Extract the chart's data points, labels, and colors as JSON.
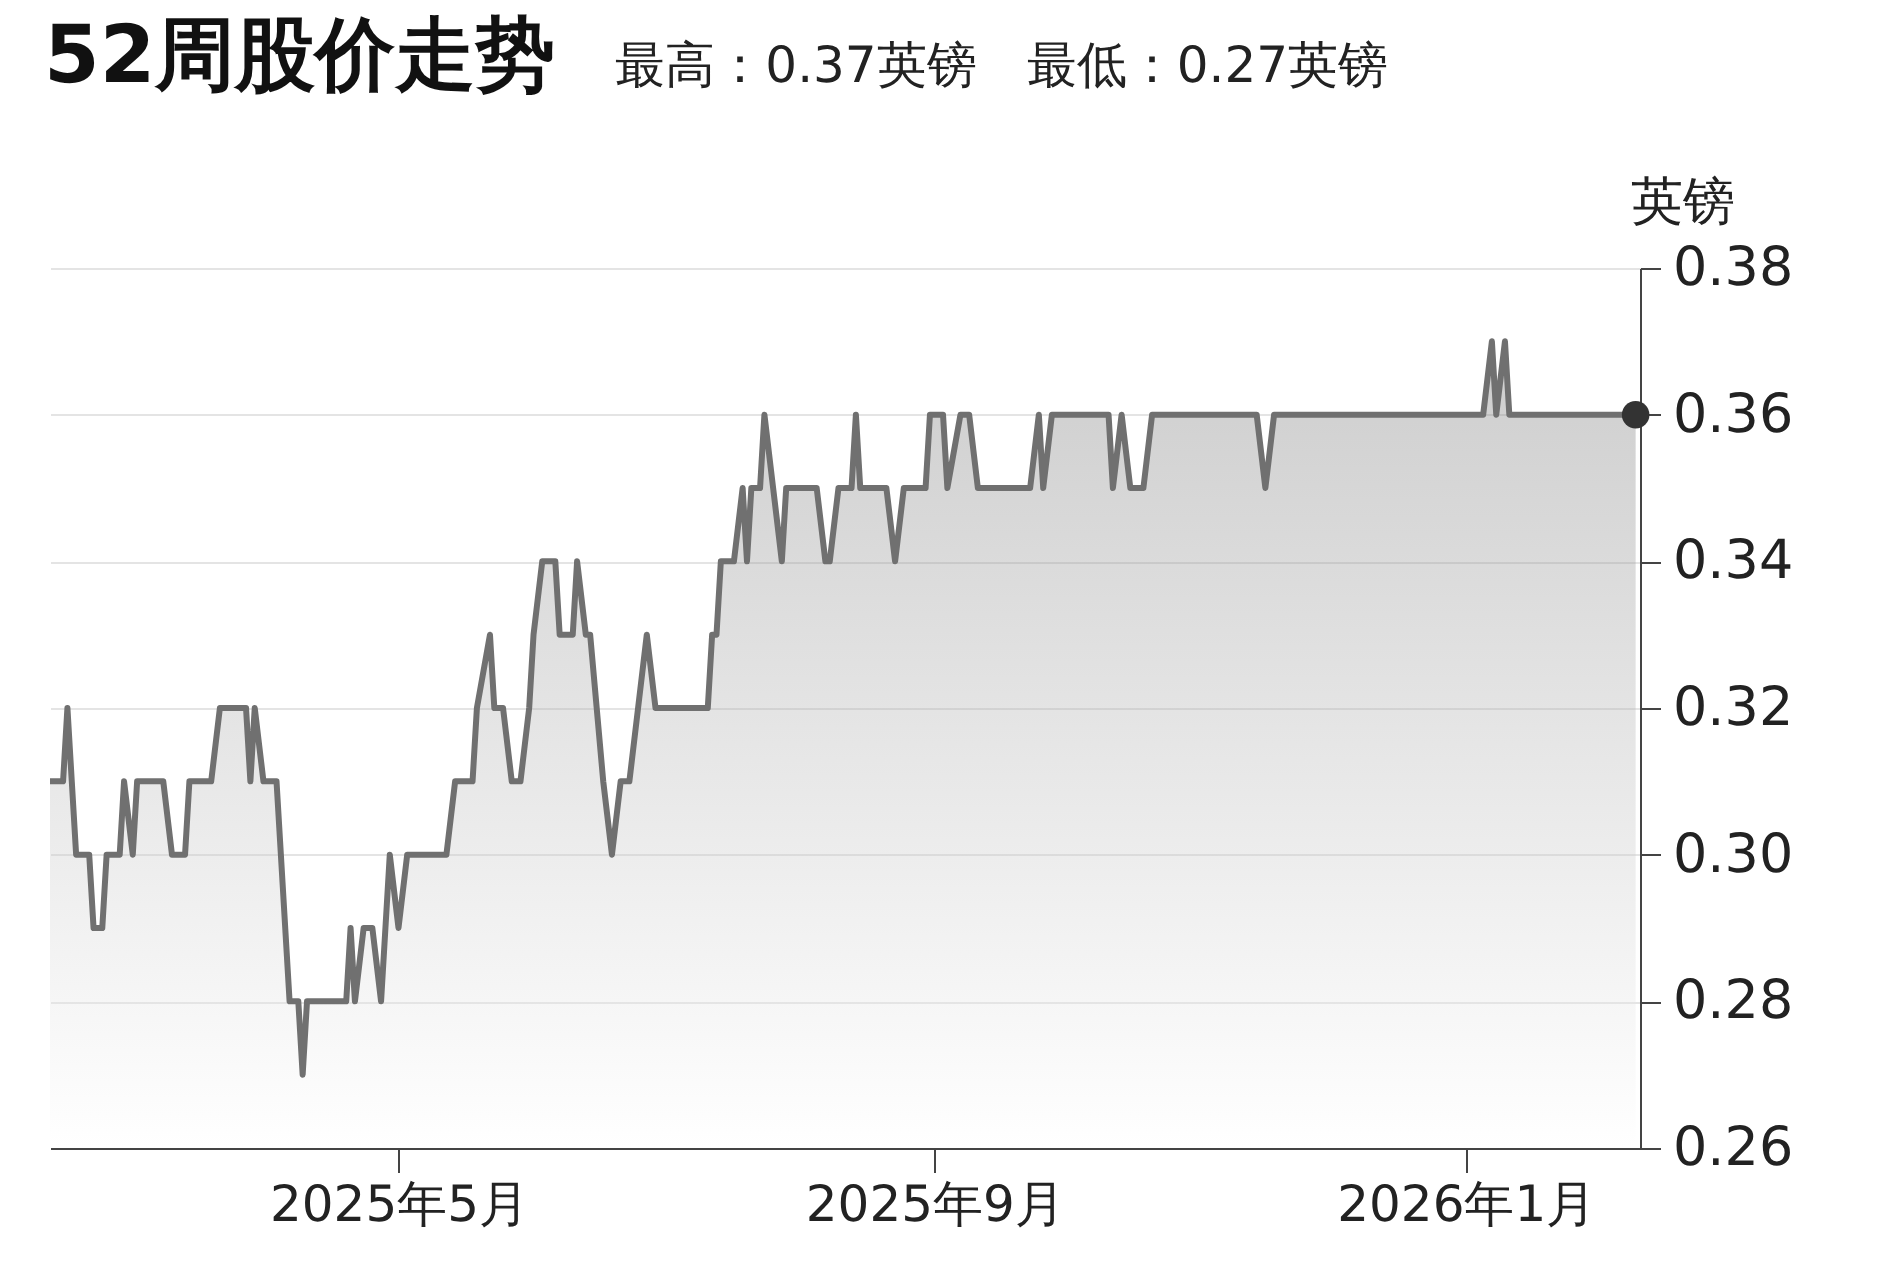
{
  "chart_data": {
    "type": "area",
    "title": "52周股价走势",
    "subtitle": "最高：0.37英镑　最低：0.27英镑",
    "ylabel": "英镑",
    "xlim": [
      "2025-02-10",
      "2026-02-10"
    ],
    "xticks": [
      {
        "value": "2025-05-01",
        "label": "2025年5月"
      },
      {
        "value": "2025-09-01",
        "label": "2025年9月"
      },
      {
        "value": "2026-01-01",
        "label": "2026年1月"
      }
    ],
    "ylim": [
      0.26,
      0.38
    ],
    "yticks": [
      0.26,
      0.28,
      {
        "value": 0.3,
        "label": "0.30"
      },
      0.32,
      0.34,
      0.36,
      0.38
    ],
    "grid": "y",
    "series": [
      {
        "color": "#707070",
        "x": [
          "2025-02-10",
          "2025-02-13",
          "2025-02-14",
          "2025-02-15",
          "2025-02-16",
          "2025-02-19",
          "2025-02-20",
          "2025-02-22",
          "2025-02-23",
          "2025-02-26",
          "2025-02-27",
          "2025-03-01",
          "2025-03-02",
          "2025-03-08",
          "2025-03-10",
          "2025-03-13",
          "2025-03-14",
          "2025-03-19",
          "2025-03-21",
          "2025-03-27",
          "2025-03-28",
          "2025-03-29",
          "2025-03-31",
          "2025-04-03",
          "2025-04-06",
          "2025-04-08",
          "2025-04-09",
          "2025-04-10",
          "2025-04-19",
          "2025-04-20",
          "2025-04-21",
          "2025-04-23",
          "2025-04-25",
          "2025-04-27",
          "2025-04-29",
          "2025-05-01",
          "2025-05-03",
          "2025-05-12",
          "2025-05-14",
          "2025-05-18",
          "2025-05-19",
          "2025-05-22",
          "2025-05-23",
          "2025-05-25",
          "2025-05-27",
          "2025-05-29",
          "2025-05-31",
          "2025-06-01",
          "2025-06-03",
          "2025-06-06",
          "2025-06-07",
          "2025-06-10",
          "2025-06-11",
          "2025-06-13",
          "2025-06-14",
          "2025-06-17",
          "2025-06-19",
          "2025-06-21",
          "2025-06-23",
          "2025-06-25",
          "2025-06-27",
          "2025-06-29",
          "2025-07-11",
          "2025-07-12",
          "2025-07-13",
          "2025-07-14",
          "2025-07-17",
          "2025-07-19",
          "2025-07-20",
          "2025-07-21",
          "2025-07-23",
          "2025-07-24",
          "2025-07-26",
          "2025-07-28",
          "2025-07-29",
          "2025-08-05",
          "2025-08-07",
          "2025-08-08",
          "2025-08-10",
          "2025-08-13",
          "2025-08-14",
          "2025-08-15",
          "2025-08-21",
          "2025-08-23",
          "2025-08-25",
          "2025-08-30",
          "2025-08-31",
          "2025-09-03",
          "2025-09-04",
          "2025-09-07",
          "2025-09-09",
          "2025-09-11",
          "2025-09-23",
          "2025-09-25",
          "2025-09-26",
          "2025-09-28",
          "2025-10-11",
          "2025-10-12",
          "2025-10-14",
          "2025-10-16",
          "2025-10-19",
          "2025-10-21",
          "2025-11-14",
          "2025-11-16",
          "2025-11-18",
          "2026-01-05",
          "2026-01-07",
          "2026-01-08",
          "2026-01-10",
          "2026-01-11",
          "2026-02-09"
        ],
        "values": [
          0.31,
          0.31,
          0.32,
          0.31,
          0.3,
          0.3,
          0.29,
          0.29,
          0.3,
          0.3,
          0.31,
          0.3,
          0.31,
          0.31,
          0.3,
          0.3,
          0.31,
          0.31,
          0.32,
          0.32,
          0.31,
          0.32,
          0.31,
          0.31,
          0.28,
          0.28,
          0.27,
          0.28,
          0.28,
          0.29,
          0.28,
          0.29,
          0.29,
          0.28,
          0.3,
          0.29,
          0.3,
          0.3,
          0.31,
          0.31,
          0.32,
          0.33,
          0.32,
          0.32,
          0.31,
          0.31,
          0.32,
          0.33,
          0.34,
          0.34,
          0.33,
          0.33,
          0.34,
          0.33,
          0.33,
          0.31,
          0.3,
          0.31,
          0.31,
          0.32,
          0.33,
          0.32,
          0.32,
          0.33,
          0.33,
          0.34,
          0.34,
          0.35,
          0.34,
          0.35,
          0.35,
          0.36,
          0.35,
          0.34,
          0.35,
          0.35,
          0.34,
          0.34,
          0.35,
          0.35,
          0.36,
          0.35,
          0.35,
          0.34,
          0.35,
          0.35,
          0.36,
          0.36,
          0.35,
          0.36,
          0.36,
          0.35,
          0.35,
          0.36,
          0.35,
          0.36,
          0.36,
          0.35,
          0.36,
          0.35,
          0.35,
          0.36,
          0.36,
          0.35,
          0.36,
          0.36,
          0.37,
          0.36,
          0.37,
          0.36,
          0.36
        ]
      },
      {
        "type": "scatter",
        "color": "#333333",
        "x": [
          "2026-02-09"
        ],
        "values": [
          0.36
        ]
      }
    ]
  }
}
